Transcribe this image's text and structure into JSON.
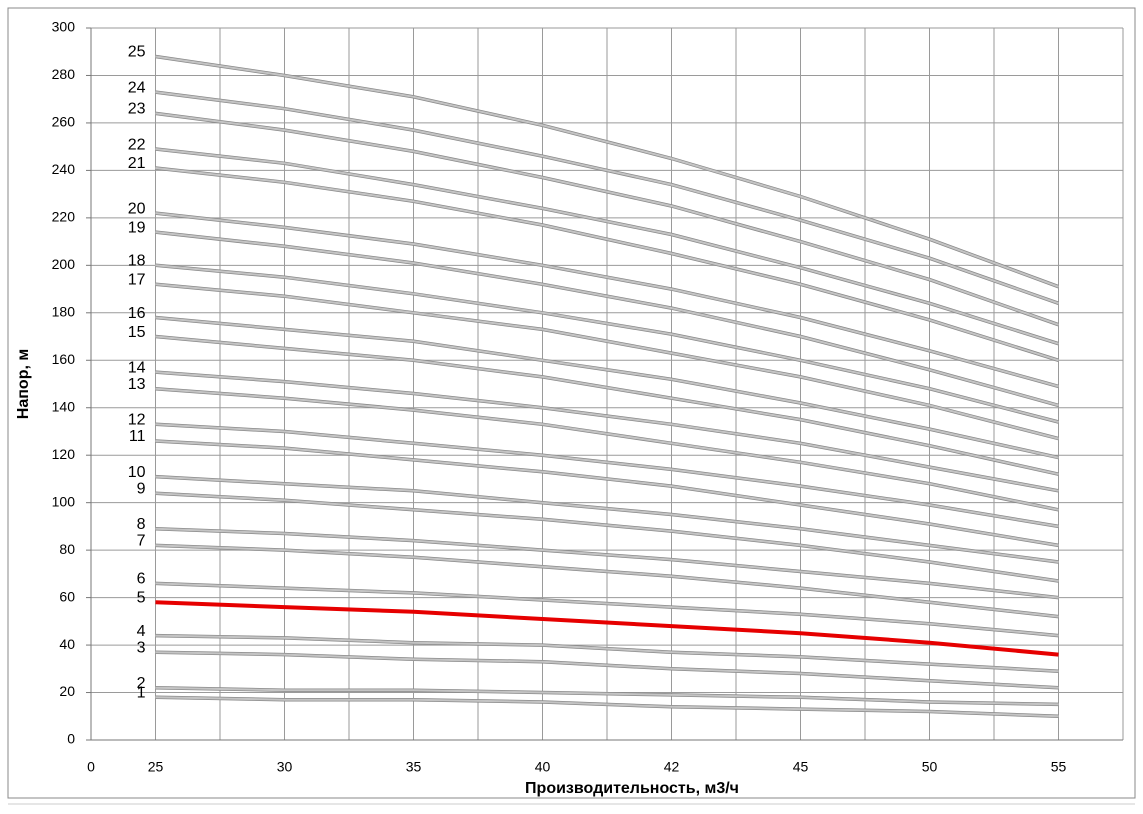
{
  "chart_data": {
    "type": "line",
    "x_label": "Производительность, м3/ч",
    "y_label": "Напор, м",
    "categories": [
      "0",
      "25",
      "30",
      "35",
      "40",
      "42",
      "45",
      "50",
      "55"
    ],
    "ylim": [
      0,
      300
    ],
    "yticks": [
      0,
      20,
      40,
      60,
      80,
      100,
      120,
      140,
      160,
      180,
      200,
      220,
      240,
      260,
      280,
      300
    ],
    "grid": true,
    "series": [
      {
        "name": "1",
        "color": "#c4c4c4",
        "values": [
          null,
          18,
          17,
          17,
          16,
          14,
          13,
          12,
          10
        ]
      },
      {
        "name": "2",
        "color": "#c4c4c4",
        "values": [
          null,
          22,
          21,
          21,
          20,
          19,
          18,
          16,
          15
        ]
      },
      {
        "name": "3",
        "color": "#c4c4c4",
        "values": [
          null,
          37,
          36,
          34,
          33,
          30,
          28,
          25,
          22
        ]
      },
      {
        "name": "4",
        "color": "#c4c4c4",
        "values": [
          null,
          44,
          43,
          41,
          40,
          37,
          35,
          32,
          29
        ]
      },
      {
        "name": "5",
        "color": "#e60000",
        "values": [
          null,
          58,
          56,
          54,
          51,
          48,
          45,
          41,
          36
        ]
      },
      {
        "name": "6",
        "color": "#c4c4c4",
        "values": [
          null,
          66,
          64,
          62,
          59,
          56,
          53,
          49,
          44
        ]
      },
      {
        "name": "7",
        "color": "#c4c4c4",
        "values": [
          null,
          82,
          80,
          77,
          73,
          69,
          64,
          58,
          52
        ]
      },
      {
        "name": "8",
        "color": "#c4c4c4",
        "values": [
          null,
          89,
          87,
          84,
          80,
          76,
          71,
          66,
          60
        ]
      },
      {
        "name": "9",
        "color": "#c4c4c4",
        "values": [
          null,
          104,
          101,
          97,
          93,
          88,
          82,
          75,
          67
        ]
      },
      {
        "name": "10",
        "color": "#c4c4c4",
        "values": [
          null,
          111,
          108,
          105,
          100,
          95,
          89,
          82,
          75
        ]
      },
      {
        "name": "11",
        "color": "#c4c4c4",
        "values": [
          null,
          126,
          123,
          118,
          113,
          107,
          99,
          91,
          82
        ]
      },
      {
        "name": "12",
        "color": "#c4c4c4",
        "values": [
          null,
          133,
          130,
          125,
          120,
          114,
          107,
          99,
          90
        ]
      },
      {
        "name": "13",
        "color": "#c4c4c4",
        "values": [
          null,
          148,
          144,
          139,
          133,
          125,
          117,
          108,
          97
        ]
      },
      {
        "name": "14",
        "color": "#c4c4c4",
        "values": [
          null,
          155,
          151,
          146,
          140,
          133,
          125,
          115,
          105
        ]
      },
      {
        "name": "15",
        "color": "#c4c4c4",
        "values": [
          null,
          170,
          165,
          160,
          153,
          144,
          135,
          124,
          112
        ]
      },
      {
        "name": "16",
        "color": "#c4c4c4",
        "values": [
          null,
          178,
          173,
          168,
          160,
          152,
          142,
          131,
          119
        ]
      },
      {
        "name": "17",
        "color": "#c4c4c4",
        "values": [
          null,
          192,
          187,
          180,
          173,
          163,
          153,
          141,
          127
        ]
      },
      {
        "name": "18",
        "color": "#c4c4c4",
        "values": [
          null,
          200,
          195,
          188,
          180,
          171,
          160,
          148,
          134
        ]
      },
      {
        "name": "19",
        "color": "#c4c4c4",
        "values": [
          null,
          214,
          208,
          201,
          192,
          182,
          170,
          156,
          141
        ]
      },
      {
        "name": "20",
        "color": "#c4c4c4",
        "values": [
          null,
          222,
          216,
          209,
          200,
          190,
          178,
          164,
          149
        ]
      },
      {
        "name": "21",
        "color": "#c4c4c4",
        "values": [
          null,
          241,
          235,
          227,
          217,
          205,
          192,
          177,
          160
        ]
      },
      {
        "name": "22",
        "color": "#c4c4c4",
        "values": [
          null,
          249,
          243,
          234,
          224,
          213,
          199,
          184,
          167
        ]
      },
      {
        "name": "23",
        "color": "#c4c4c4",
        "values": [
          null,
          264,
          257,
          248,
          237,
          225,
          210,
          194,
          175
        ]
      },
      {
        "name": "24",
        "color": "#c4c4c4",
        "values": [
          null,
          273,
          266,
          257,
          246,
          234,
          219,
          203,
          184
        ]
      },
      {
        "name": "25",
        "color": "#c4c4c4",
        "values": [
          null,
          288,
          280,
          271,
          259,
          245,
          229,
          211,
          191
        ]
      }
    ]
  }
}
